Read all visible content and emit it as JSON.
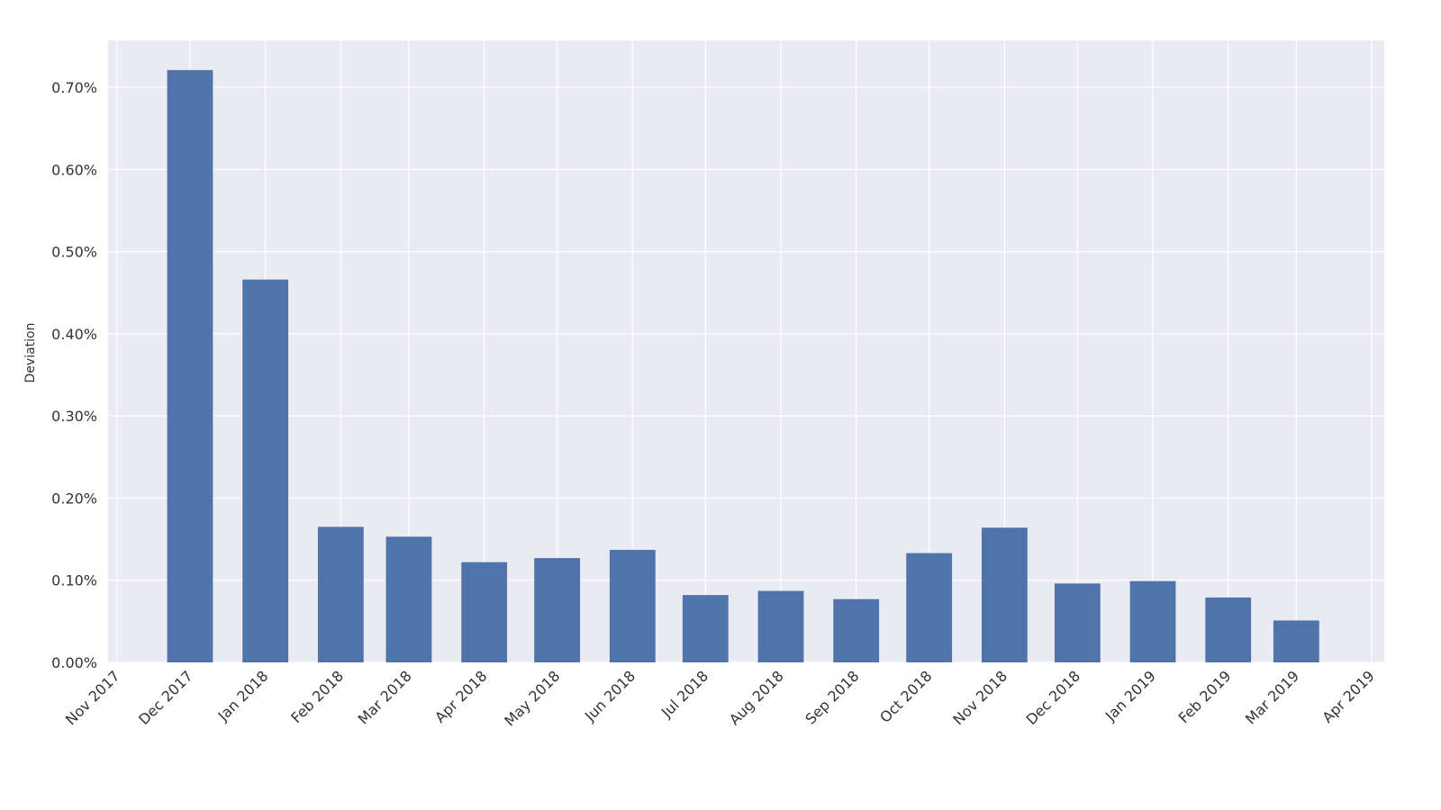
{
  "chart_data": {
    "type": "bar",
    "y_label": "Deviation",
    "x": [
      "Nov 2017",
      "Dec 2017",
      "Jan 2018",
      "Feb 2018",
      "Mar 2018",
      "Apr 2018",
      "May 2018",
      "Jun 2018",
      "Jul 2018",
      "Aug 2018",
      "Sep 2018",
      "Oct 2018",
      "Nov 2018",
      "Dec 2018",
      "Jan 2019",
      "Feb 2019",
      "Mar 2019",
      "Apr 2019"
    ],
    "values": [
      null,
      0.721,
      0.466,
      0.165,
      0.153,
      0.122,
      0.127,
      0.137,
      0.082,
      0.087,
      0.077,
      0.133,
      0.164,
      0.096,
      0.099,
      0.079,
      0.051,
      null
    ],
    "color": "#5173ab",
    "ylim": [
      0,
      0.757
    ],
    "yticks": [
      {
        "value": 0,
        "label": "0.00%"
      },
      {
        "value": 0.1,
        "label": "0.10%"
      },
      {
        "value": 0.2,
        "label": "0.20%"
      },
      {
        "value": 0.3,
        "label": "0.30%"
      },
      {
        "value": 0.4,
        "label": "0.40%"
      },
      {
        "value": 0.5,
        "label": "0.50%"
      },
      {
        "value": 0.6,
        "label": "0.60%"
      },
      {
        "value": 0.7,
        "label": "0.70%"
      }
    ],
    "grid": true
  }
}
